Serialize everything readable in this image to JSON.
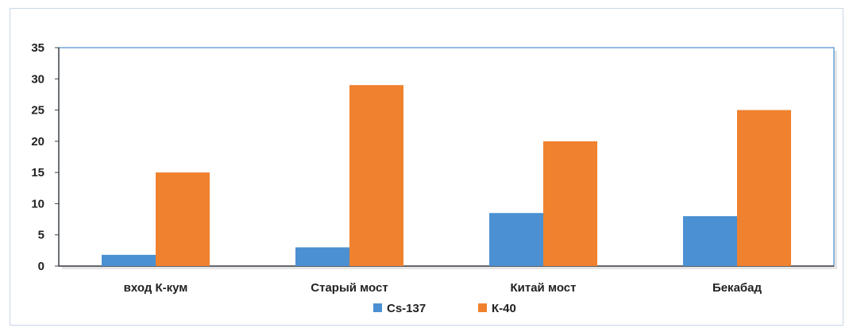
{
  "chart_data": {
    "type": "bar",
    "categories": [
      "вход К-кум",
      "Старый мост",
      "Китай мост",
      "Бекабад"
    ],
    "series": [
      {
        "name": "Cs-137",
        "values": [
          1.8,
          3.0,
          8.5,
          8.0
        ],
        "color": "#4a90d2"
      },
      {
        "name": "К-40",
        "values": [
          15,
          29,
          20,
          25
        ],
        "color": "#f0812e"
      }
    ],
    "ylim": [
      0,
      35
    ],
    "yticks": [
      0,
      5,
      10,
      15,
      20,
      25,
      30,
      35
    ],
    "grid": false,
    "legend": "bottom-center",
    "xlabel": "",
    "ylabel": "",
    "title": ""
  }
}
